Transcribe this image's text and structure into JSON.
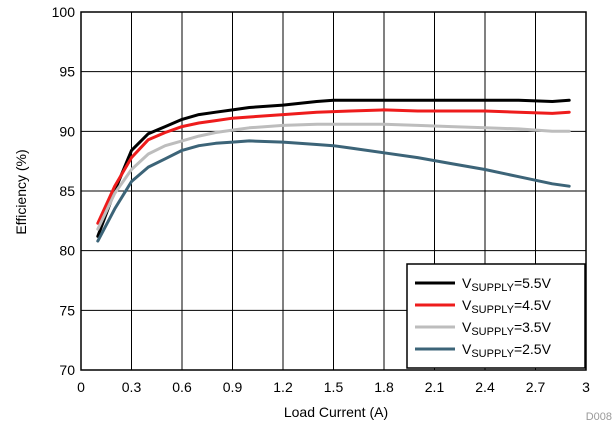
{
  "chart_data": {
    "type": "line",
    "title": "",
    "xlabel": "Load Current (A)",
    "ylabel": "Efficiency (%)",
    "xlim": [
      0,
      3
    ],
    "ylim": [
      70,
      100
    ],
    "xticks": [
      0,
      0.3,
      0.6,
      0.9,
      1.2,
      1.5,
      1.8,
      2.1,
      2.4,
      2.7,
      3
    ],
    "xtick_labels": [
      "0",
      "0.3",
      "0.6",
      "0.9",
      "1.2",
      "1.5",
      "1.8",
      "2.1",
      "2.4",
      "2.7",
      "3"
    ],
    "yticks": [
      70,
      75,
      80,
      85,
      90,
      95,
      100
    ],
    "ytick_labels": [
      "70",
      "75",
      "80",
      "85",
      "90",
      "95",
      "100"
    ],
    "grid": true,
    "legend_position": "bottom-right",
    "series": [
      {
        "name": "VSUPPLY=5.5V",
        "label_main": "V",
        "label_sub": "SUPPLY",
        "label_suffix": "=5.5V",
        "color": "#000000",
        "x": [
          0.1,
          0.2,
          0.3,
          0.4,
          0.5,
          0.6,
          0.7,
          0.8,
          0.9,
          1.0,
          1.2,
          1.4,
          1.5,
          1.6,
          1.8,
          2.0,
          2.2,
          2.4,
          2.6,
          2.8,
          2.9
        ],
        "y": [
          81.2,
          85.0,
          88.4,
          89.8,
          90.4,
          91.0,
          91.4,
          91.6,
          91.8,
          92.0,
          92.2,
          92.5,
          92.6,
          92.6,
          92.6,
          92.6,
          92.6,
          92.6,
          92.6,
          92.5,
          92.6
        ]
      },
      {
        "name": "VSUPPLY=4.5V",
        "label_main": "V",
        "label_sub": "SUPPLY",
        "label_suffix": "=4.5V",
        "color": "#ee1c1c",
        "x": [
          0.1,
          0.2,
          0.3,
          0.4,
          0.5,
          0.6,
          0.7,
          0.8,
          0.9,
          1.0,
          1.2,
          1.4,
          1.6,
          1.8,
          2.0,
          2.2,
          2.4,
          2.6,
          2.8,
          2.9
        ],
        "y": [
          82.3,
          85.4,
          87.8,
          89.3,
          89.9,
          90.4,
          90.7,
          90.9,
          91.1,
          91.2,
          91.4,
          91.6,
          91.7,
          91.8,
          91.7,
          91.7,
          91.7,
          91.6,
          91.5,
          91.6
        ]
      },
      {
        "name": "VSUPPLY=3.5V",
        "label_main": "V",
        "label_sub": "SUPPLY",
        "label_suffix": "=3.5V",
        "color": "#bdbdbd",
        "x": [
          0.1,
          0.2,
          0.3,
          0.4,
          0.5,
          0.6,
          0.7,
          0.8,
          0.9,
          1.0,
          1.2,
          1.4,
          1.6,
          1.8,
          2.0,
          2.2,
          2.4,
          2.6,
          2.8,
          2.9
        ],
        "y": [
          81.8,
          84.8,
          86.8,
          88.1,
          88.8,
          89.2,
          89.6,
          89.9,
          90.1,
          90.3,
          90.5,
          90.6,
          90.6,
          90.6,
          90.5,
          90.4,
          90.3,
          90.2,
          90.0,
          90.0
        ]
      },
      {
        "name": "VSUPPLY=2.5V",
        "label_main": "V",
        "label_sub": "SUPPLY",
        "label_suffix": "=2.5V",
        "color": "#3c6478",
        "x": [
          0.1,
          0.2,
          0.3,
          0.4,
          0.5,
          0.6,
          0.7,
          0.8,
          0.9,
          1.0,
          1.2,
          1.4,
          1.5,
          1.6,
          1.8,
          2.0,
          2.2,
          2.4,
          2.6,
          2.8,
          2.9
        ],
        "y": [
          80.8,
          83.5,
          85.8,
          87.0,
          87.7,
          88.4,
          88.8,
          89.0,
          89.1,
          89.2,
          89.1,
          88.9,
          88.8,
          88.6,
          88.2,
          87.8,
          87.3,
          86.8,
          86.2,
          85.6,
          85.4
        ]
      }
    ],
    "footer_id": "D008"
  }
}
